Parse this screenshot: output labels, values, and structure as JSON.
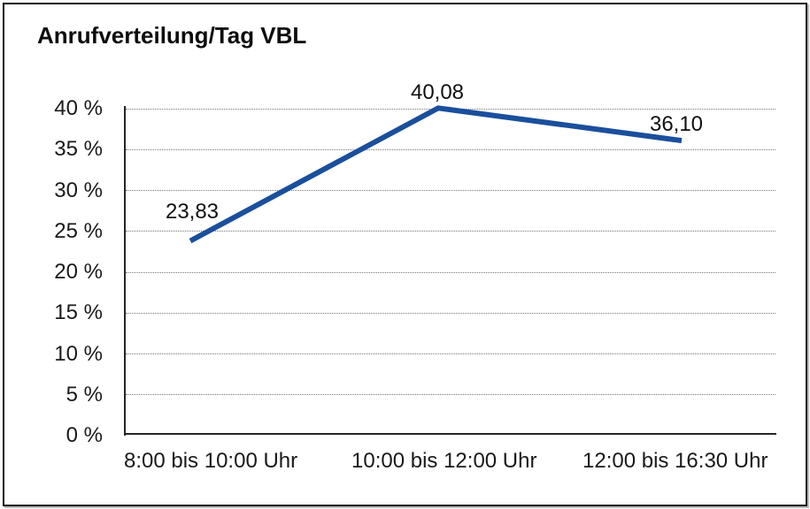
{
  "window": {
    "background_color": "#ffffff",
    "border_color": "#111111"
  },
  "chart_data": {
    "type": "line",
    "title": "Anrufverteilung/Tag VBL",
    "categories": [
      "8:00 bis 10:00 Uhr",
      "10:00 bis 12:00 Uhr",
      "12:00 bis 16:30 Uhr"
    ],
    "values": [
      23.83,
      40.08,
      36.1
    ],
    "point_labels": [
      "23,83",
      "40,08",
      "36,10"
    ],
    "series_color": "#1a4f9c",
    "xlabel": "",
    "ylabel": "",
    "ylim": [
      0,
      40
    ],
    "ytick_step": 5,
    "ytick_labels": [
      "0 %",
      "5 %",
      "10 %",
      "15 %",
      "20 %",
      "25 %",
      "30 %",
      "35 %",
      "40 %"
    ],
    "grid": "horizontal-dotted",
    "legend": "none"
  }
}
